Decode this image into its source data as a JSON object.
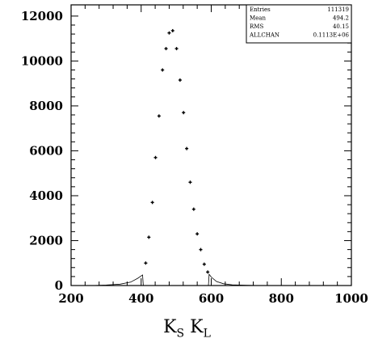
{
  "chart_data": {
    "type": "scatter",
    "xlim": [
      200,
      1000
    ],
    "ylim": [
      0,
      12500
    ],
    "x_ticks": [
      "200",
      "400",
      "600",
      "800",
      "1000"
    ],
    "y_ticks": [
      "0",
      "2000",
      "4000",
      "6000",
      "8000",
      "10000",
      "12000"
    ],
    "xlabel_main": "K",
    "xlabel_sub1": "S",
    "xlabel_sub2": "L",
    "points": [
      {
        "x": 413,
        "y": 1000
      },
      {
        "x": 422,
        "y": 2150
      },
      {
        "x": 432,
        "y": 3700
      },
      {
        "x": 441,
        "y": 5700
      },
      {
        "x": 451,
        "y": 7550
      },
      {
        "x": 461,
        "y": 9600
      },
      {
        "x": 471,
        "y": 10550
      },
      {
        "x": 480,
        "y": 11250
      },
      {
        "x": 490,
        "y": 11350
      },
      {
        "x": 501,
        "y": 10550
      },
      {
        "x": 511,
        "y": 9150
      },
      {
        "x": 521,
        "y": 7700
      },
      {
        "x": 530,
        "y": 6100
      },
      {
        "x": 540,
        "y": 4600
      },
      {
        "x": 550,
        "y": 3400
      },
      {
        "x": 560,
        "y": 2300
      },
      {
        "x": 570,
        "y": 1600
      },
      {
        "x": 580,
        "y": 950
      },
      {
        "x": 590,
        "y": 600
      }
    ],
    "mc_curve": [
      [
        260,
        0
      ],
      [
        300,
        20
      ],
      [
        340,
        60
      ],
      [
        370,
        150
      ],
      [
        390,
        320
      ],
      [
        400,
        430
      ],
      [
        404,
        470
      ],
      [
        406,
        0
      ],
      [
        592,
        0
      ],
      [
        594,
        500
      ],
      [
        600,
        380
      ],
      [
        615,
        180
      ],
      [
        635,
        80
      ],
      [
        660,
        30
      ],
      [
        700,
        10
      ],
      [
        740,
        0
      ]
    ],
    "stats_box": {
      "rows": [
        {
          "label": "Entries",
          "value": "111319"
        },
        {
          "label": "Mean",
          "value": "494.2"
        },
        {
          "label": "RMS",
          "value": "40.15"
        },
        {
          "label": "ALLCHAN",
          "value": "0.1113E+06"
        }
      ]
    }
  }
}
